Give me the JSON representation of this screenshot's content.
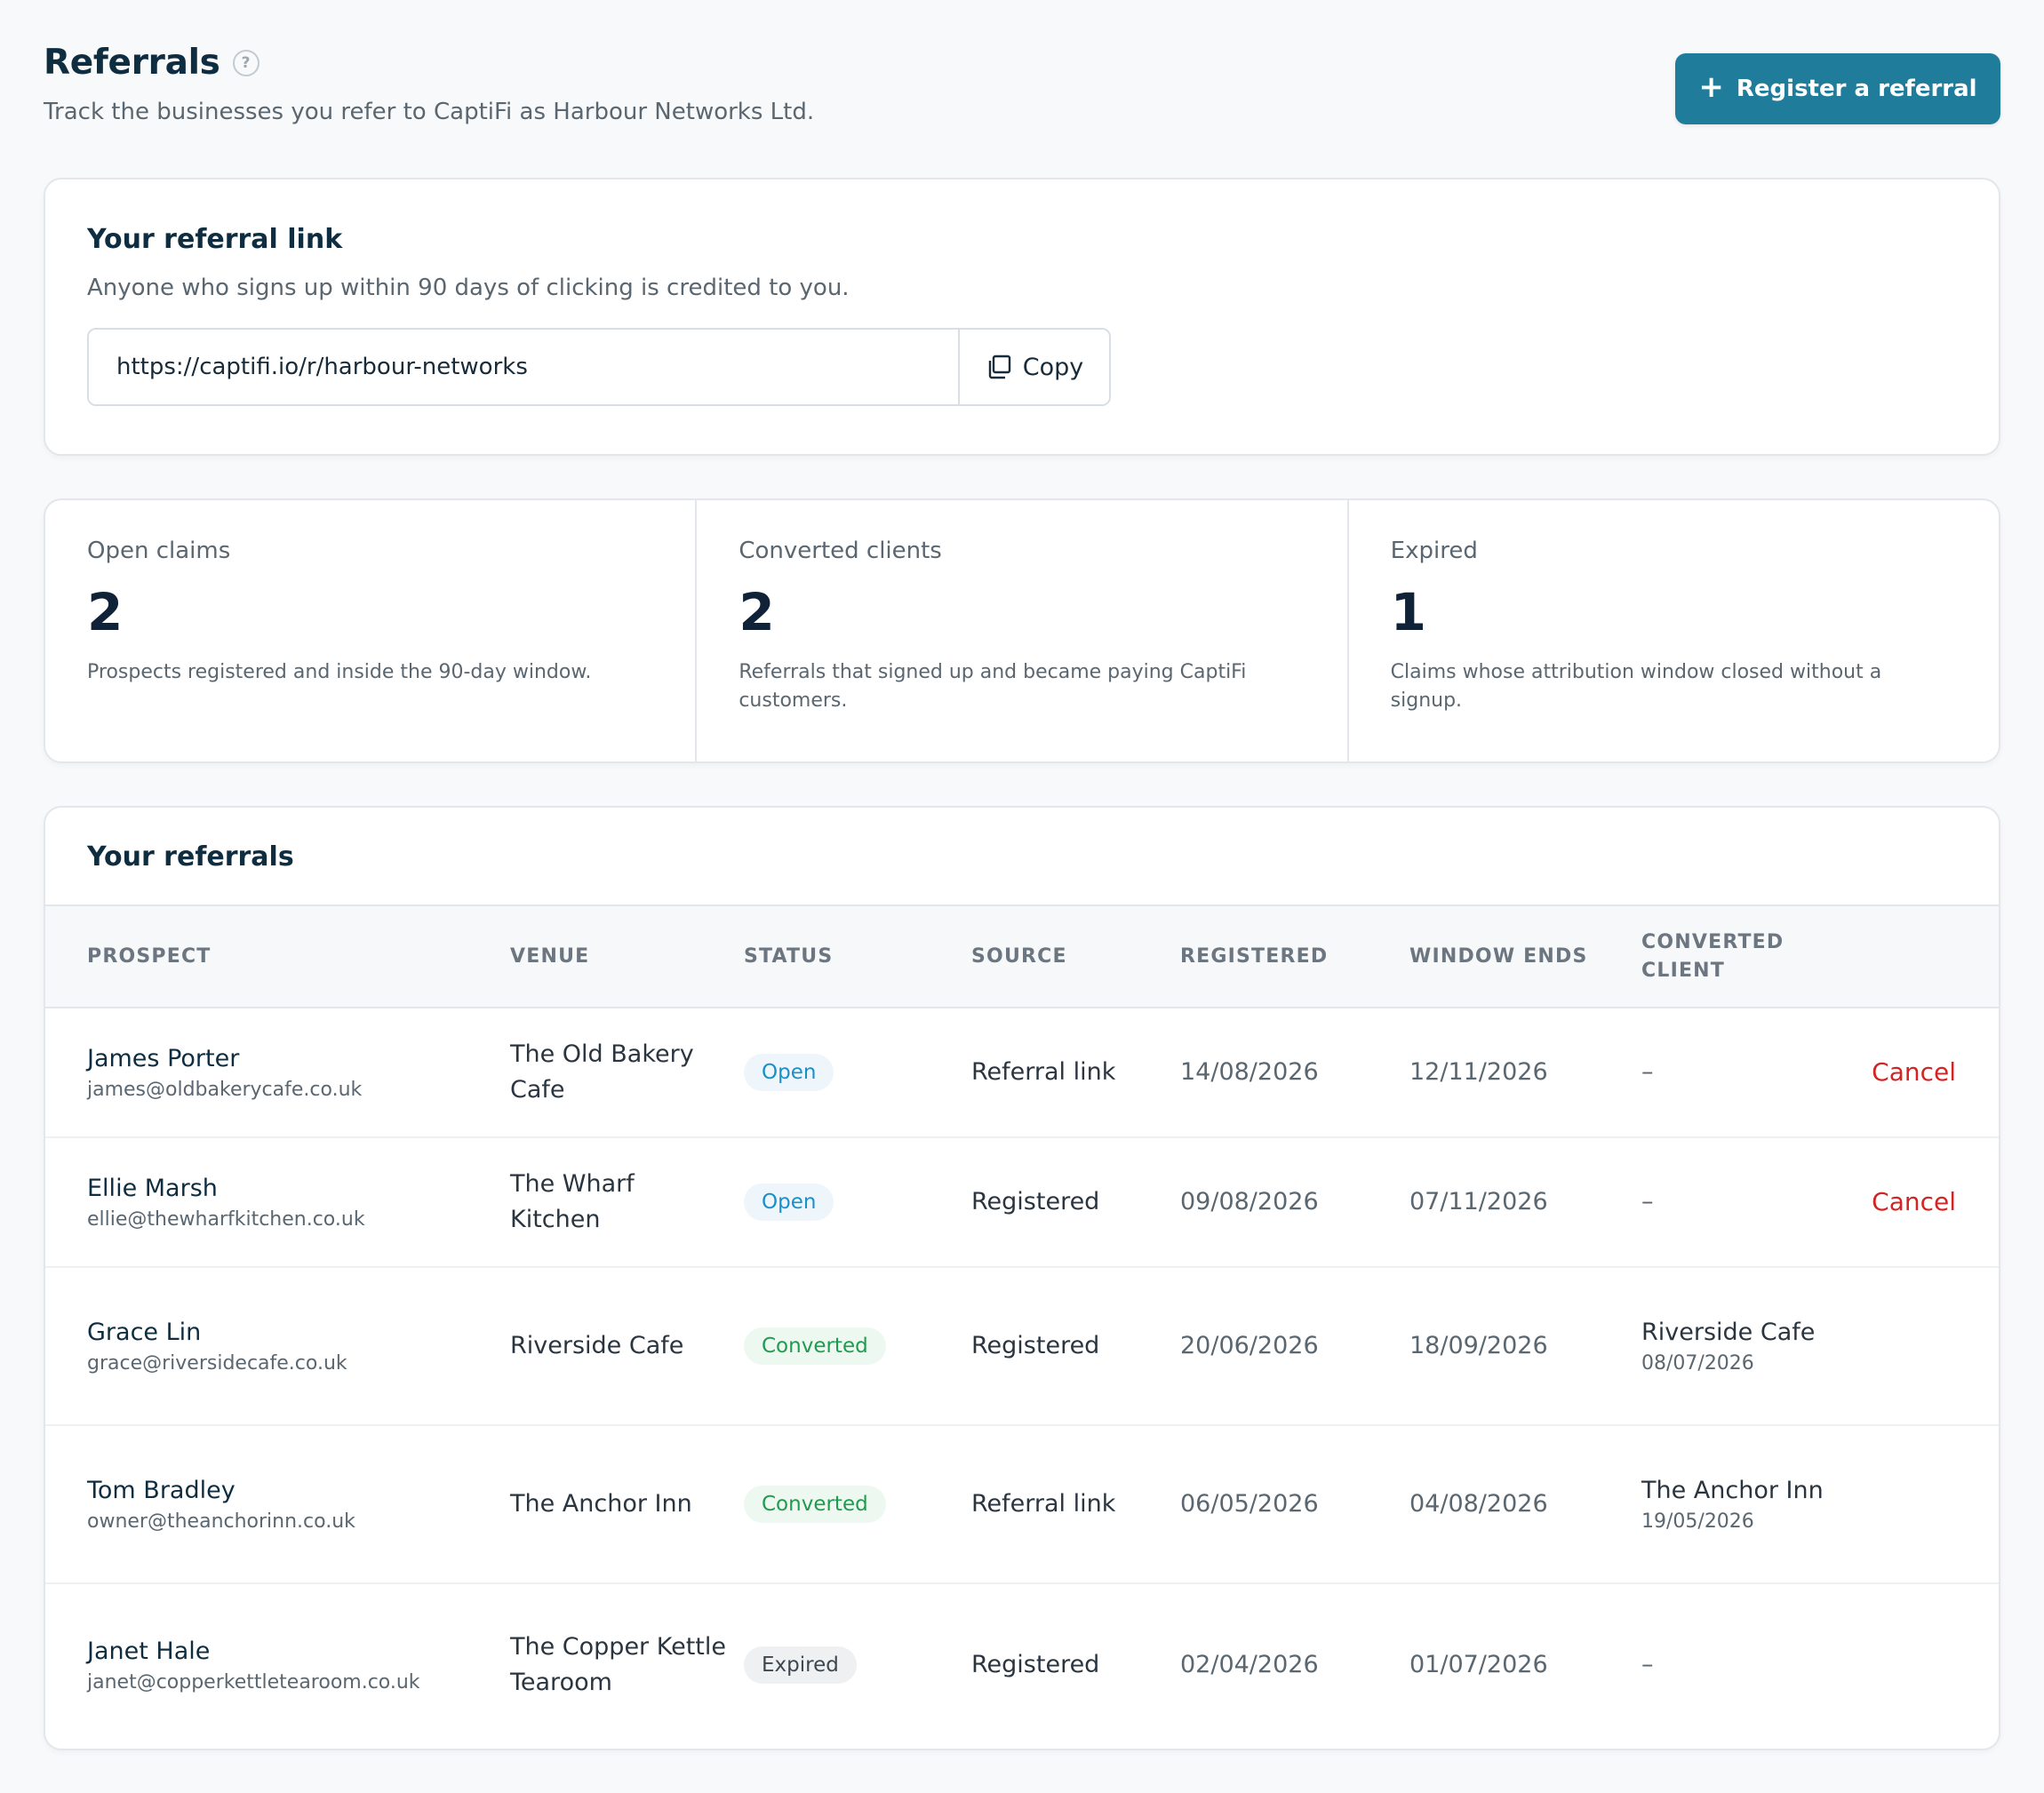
{
  "header": {
    "title": "Referrals",
    "help_glyph": "?",
    "subtitle": "Track the businesses you refer to CaptiFi as Harbour Networks Ltd.",
    "register_button": "Register a referral",
    "register_icon": "plus-icon"
  },
  "referral_link": {
    "title": "Your referral link",
    "subtitle": "Anyone who signs up within 90 days of clicking is credited to you.",
    "url": "https://captifi.io/r/harbour-networks",
    "copy_label": "Copy",
    "copy_icon": "copy-icon"
  },
  "stats": [
    {
      "label": "Open claims",
      "value": "2",
      "description": "Prospects registered and inside the 90-day window."
    },
    {
      "label": "Converted clients",
      "value": "2",
      "description": "Referrals that signed up and became paying CaptiFi customers."
    },
    {
      "label": "Expired",
      "value": "1",
      "description": "Claims whose attribution window closed without a signup."
    }
  ],
  "referrals": {
    "title": "Your referrals",
    "columns": [
      "PROSPECT",
      "VENUE",
      "STATUS",
      "SOURCE",
      "REGISTERED",
      "WINDOW ENDS",
      "CONVERTED CLIENT"
    ],
    "rows": [
      {
        "name": "James Porter",
        "email": "james@oldbakerycafe.co.uk",
        "venue": "The Old Bakery Cafe",
        "status": "Open",
        "source": "Referral link",
        "registered": "14/08/2026",
        "window_ends": "12/11/2026",
        "converted_client": "–",
        "converted_date": "",
        "action": "Cancel"
      },
      {
        "name": "Ellie Marsh",
        "email": "ellie@thewharfkitchen.co.uk",
        "venue": "The Wharf Kitchen",
        "status": "Open",
        "source": "Registered",
        "registered": "09/08/2026",
        "window_ends": "07/11/2026",
        "converted_client": "–",
        "converted_date": "",
        "action": "Cancel"
      },
      {
        "name": "Grace Lin",
        "email": "grace@riversidecafe.co.uk",
        "venue": "Riverside Cafe",
        "status": "Converted",
        "source": "Registered",
        "registered": "20/06/2026",
        "window_ends": "18/09/2026",
        "converted_client": "Riverside Cafe",
        "converted_date": "08/07/2026",
        "action": ""
      },
      {
        "name": "Tom Bradley",
        "email": "owner@theanchorinn.co.uk",
        "venue": "The Anchor Inn",
        "status": "Converted",
        "source": "Referral link",
        "registered": "06/05/2026",
        "window_ends": "04/08/2026",
        "converted_client": "The Anchor Inn",
        "converted_date": "19/05/2026",
        "action": ""
      },
      {
        "name": "Janet Hale",
        "email": "janet@copperkettletearoom.co.uk",
        "venue": "The Copper Kettle Tearoom",
        "status": "Expired",
        "source": "Registered",
        "registered": "02/04/2026",
        "window_ends": "01/07/2026",
        "converted_client": "–",
        "converted_date": "",
        "action": ""
      }
    ]
  },
  "colors": {
    "primary": "#1f7d9b",
    "open": "#1a8fc8",
    "converted": "#1e9b4e",
    "danger": "#d42323"
  }
}
